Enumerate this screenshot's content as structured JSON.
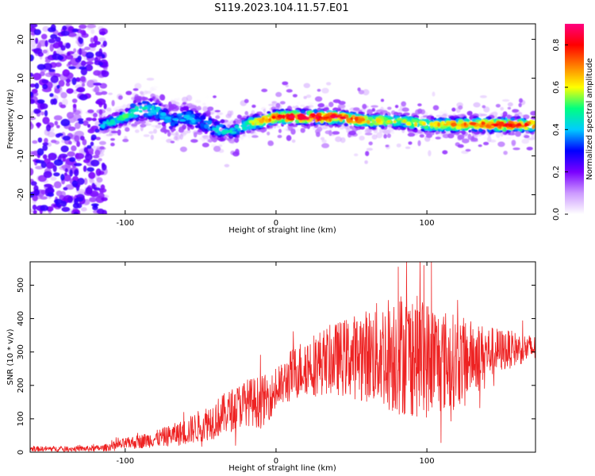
{
  "title": "S119.2023.104.11.57.E01",
  "chart_data": [
    {
      "type": "heatmap",
      "xlabel": "Height of straight line (km)",
      "ylabel": "Frequency (Hz)",
      "xlim": [
        -163,
        172
      ],
      "ylim": [
        -25,
        24
      ],
      "xticks": [
        -100,
        0,
        100
      ],
      "yticks": [
        -20,
        -10,
        0,
        10,
        20
      ],
      "colorbar": {
        "label": "Normalized spectral amplitude",
        "range": [
          0,
          0.9
        ],
        "ticks": [
          "0.0",
          "0.2",
          "0.4",
          "0.6",
          "0.8"
        ],
        "colors": [
          "#ffffff",
          "#cc99ff",
          "#7a00ff",
          "#0000ff",
          "#00ccff",
          "#00ff80",
          "#ffff00",
          "#ff8000",
          "#ff0000",
          "#ff0080"
        ]
      },
      "ridge": {
        "x": [
          -115,
          -100,
          -90,
          -80,
          -70,
          -60,
          -50,
          -40,
          -30,
          -20,
          -10,
          0,
          20,
          40,
          60,
          80,
          100,
          120,
          140,
          160,
          170
        ],
        "freq": [
          -2,
          0,
          2,
          2,
          -1,
          0,
          -1,
          -3,
          -4,
          -2,
          -1,
          0,
          0,
          0,
          -1,
          -1,
          -2,
          -2,
          -2,
          -2,
          -2
        ],
        "peak_amplitude": [
          0.4,
          0.5,
          0.45,
          0.45,
          0.35,
          0.4,
          0.35,
          0.4,
          0.45,
          0.55,
          0.65,
          0.75,
          0.85,
          0.8,
          0.65,
          0.6,
          0.6,
          0.7,
          0.75,
          0.8,
          0.7
        ]
      }
    },
    {
      "type": "line",
      "xlabel": "Height of straight line (km)",
      "ylabel": "SNR (10 * v/v)",
      "xlim": [
        -163,
        172
      ],
      "ylim": [
        0,
        570
      ],
      "xticks": [
        -100,
        0,
        100
      ],
      "yticks": [
        0,
        100,
        200,
        300,
        400,
        500
      ],
      "color": "#ee2222",
      "envelope": {
        "x": [
          -163,
          -130,
          -115,
          -100,
          -80,
          -60,
          -40,
          -20,
          -10,
          0,
          10,
          20,
          40,
          60,
          80,
          100,
          120,
          140,
          160,
          172
        ],
        "mean": [
          10,
          10,
          12,
          25,
          40,
          60,
          100,
          150,
          150,
          180,
          230,
          260,
          280,
          290,
          300,
          280,
          270,
          300,
          310,
          310
        ],
        "spread": [
          8,
          8,
          10,
          18,
          25,
          40,
          60,
          70,
          80,
          60,
          80,
          90,
          110,
          140,
          190,
          180,
          140,
          80,
          50,
          40
        ]
      },
      "peaks": [
        {
          "x": 81,
          "y": 555
        },
        {
          "x": 98,
          "y": 560
        },
        {
          "x": 103,
          "y": 570
        }
      ]
    }
  ]
}
